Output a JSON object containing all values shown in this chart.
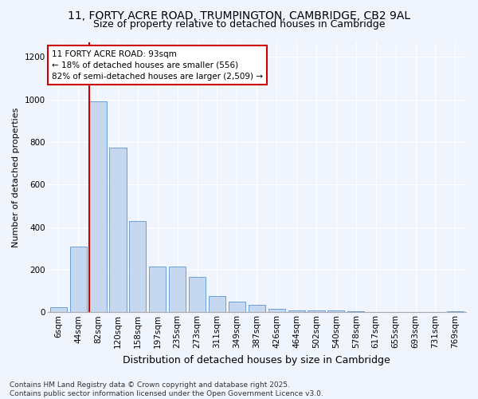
{
  "title_line1": "11, FORTY ACRE ROAD, TRUMPINGTON, CAMBRIDGE, CB2 9AL",
  "title_line2": "Size of property relative to detached houses in Cambridge",
  "xlabel": "Distribution of detached houses by size in Cambridge",
  "ylabel": "Number of detached properties",
  "categories": [
    "6sqm",
    "44sqm",
    "82sqm",
    "120sqm",
    "158sqm",
    "197sqm",
    "235sqm",
    "273sqm",
    "311sqm",
    "349sqm",
    "387sqm",
    "426sqm",
    "464sqm",
    "502sqm",
    "540sqm",
    "578sqm",
    "617sqm",
    "655sqm",
    "693sqm",
    "731sqm",
    "769sqm"
  ],
  "values": [
    25,
    310,
    990,
    775,
    430,
    215,
    215,
    165,
    75,
    50,
    35,
    15,
    10,
    8,
    8,
    5,
    0,
    0,
    0,
    0,
    5
  ],
  "bar_color": "#c5d8f0",
  "bar_edge_color": "#6a9fd8",
  "bg_color": "#f0f4fc",
  "fig_bg_color": "#f0f4fc",
  "vline_color": "#cc0000",
  "vline_x_index": 2,
  "annotation_text": "11 FORTY ACRE ROAD: 93sqm\n← 18% of detached houses are smaller (556)\n82% of semi-detached houses are larger (2,509) →",
  "annotation_box_facecolor": "#ffffff",
  "annotation_box_edgecolor": "#cc0000",
  "footnote": "Contains HM Land Registry data © Crown copyright and database right 2025.\nContains public sector information licensed under the Open Government Licence v3.0.",
  "ylim": [
    0,
    1270
  ],
  "yticks": [
    0,
    200,
    400,
    600,
    800,
    1000,
    1200
  ],
  "grid_color": "#ffffff",
  "title1_fontsize": 10,
  "title2_fontsize": 9,
  "ylabel_fontsize": 8,
  "xlabel_fontsize": 9,
  "tick_fontsize": 7.5,
  "annot_fontsize": 7.5,
  "footnote_fontsize": 6.5
}
